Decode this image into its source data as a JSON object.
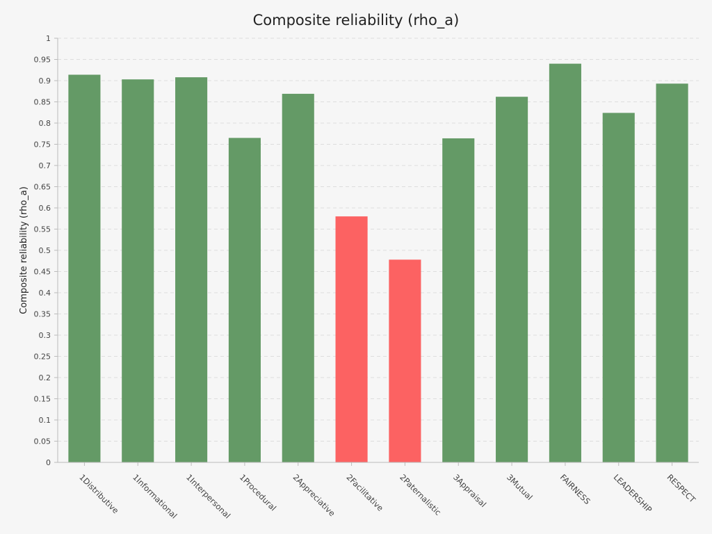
{
  "chart_data": {
    "type": "bar",
    "title": "Composite reliability (rho_a)",
    "xlabel": "",
    "ylabel": "Composite reliability (rho_a)",
    "ylim": [
      0,
      1
    ],
    "ytick_step": 0.05,
    "grid": true,
    "legend": "none",
    "categories": [
      "1Distributive",
      "1Informational",
      "1Interpersonal",
      "1Procedural",
      "2Appreciative",
      "2Facilitative",
      "2Paternalistic",
      "3Appraisal",
      "3Mutual",
      "FAIRNESS",
      "LEADERSHIP",
      "RESPECT"
    ],
    "values": [
      0.914,
      0.903,
      0.908,
      0.765,
      0.869,
      0.58,
      0.478,
      0.764,
      0.862,
      0.94,
      0.824,
      0.893
    ],
    "bar_colors": [
      "#649a66",
      "#649a66",
      "#649a66",
      "#649a66",
      "#649a66",
      "#fc6262",
      "#fc6262",
      "#649a66",
      "#649a66",
      "#649a66",
      "#649a66",
      "#649a66"
    ]
  }
}
